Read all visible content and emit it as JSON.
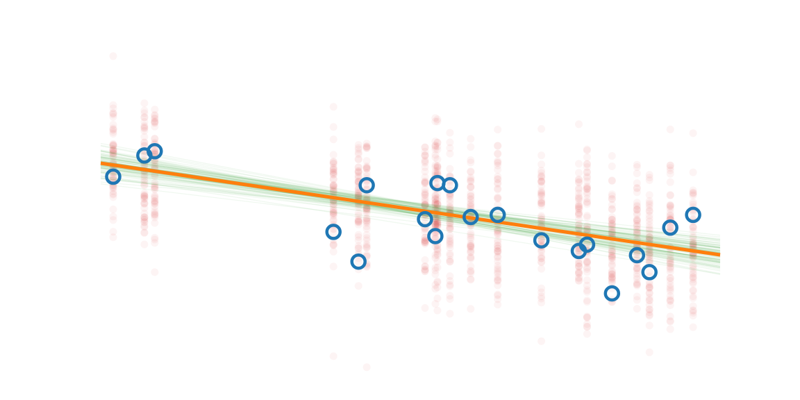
{
  "chart_data": {
    "type": "scatter",
    "title": "",
    "xlabel": "",
    "ylabel": "",
    "axes_visible": false,
    "xlim": [
      -0.3,
      14.6
    ],
    "ylim": [
      -0.2,
      14.2
    ],
    "colors": {
      "observed": "#1f77b4",
      "posterior_predictive": "#d62728",
      "posterior_lines": "#2ca02c",
      "mean_line": "#ff7f0e"
    },
    "mean_line": {
      "intercept": 8.55,
      "slope": -0.29
    },
    "posterior_line_spread": {
      "intercept_sd": 0.55,
      "slope_sd": 0.04,
      "n_draws": 90
    },
    "posterior_predictive_sd": 1.85,
    "observed": {
      "x": [
        0.0,
        0.75,
        1.0,
        5.3,
        5.9,
        6.1,
        7.5,
        7.75,
        7.8,
        8.1,
        8.6,
        9.25,
        10.3,
        11.2,
        11.4,
        12.0,
        12.6,
        12.9,
        13.4,
        13.95
      ],
      "y": [
        8.0,
        9.0,
        9.2,
        5.4,
        4.0,
        7.6,
        6.0,
        5.2,
        7.7,
        7.6,
        6.1,
        6.2,
        5.0,
        4.5,
        4.8,
        2.5,
        4.3,
        3.5,
        5.6,
        6.2
      ]
    }
  }
}
